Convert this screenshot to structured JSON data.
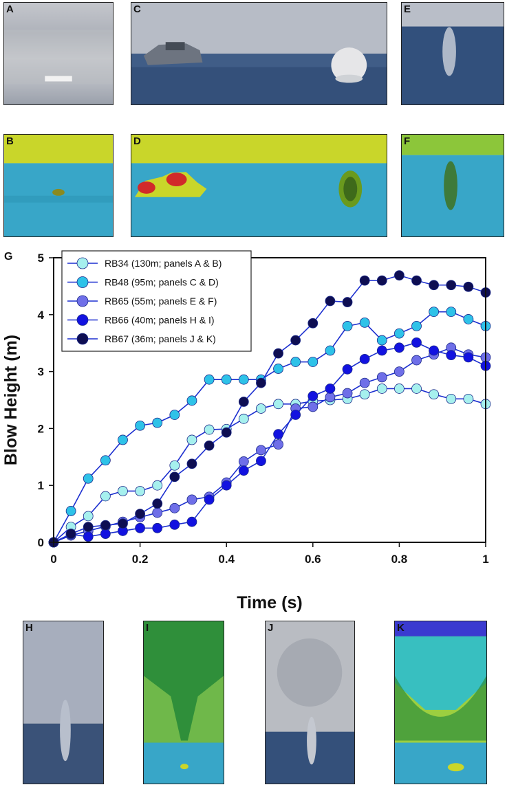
{
  "panel_labels": {
    "A": "A",
    "B": "B",
    "C": "C",
    "D": "D",
    "E": "E",
    "F": "F",
    "G": "G",
    "H": "H",
    "I": "I",
    "J": "J",
    "K": "K"
  },
  "colors": {
    "sky": "#b7bcc6",
    "sea": "#34507a",
    "thermal_sky": "#c9d62a",
    "thermal_sea": "#38a6c8",
    "thermal_hot": "#d12a2a"
  },
  "chart_data": {
    "type": "line",
    "xlabel": "Time (s)",
    "ylabel": "Blow Height (m)",
    "xlim": [
      0,
      1
    ],
    "ylim": [
      0,
      5
    ],
    "xticks": [
      0,
      0.2,
      0.4,
      0.6,
      0.8,
      1
    ],
    "xtick_labels": [
      "0",
      "0.2",
      "0.4",
      "0.6",
      "0.8",
      "1"
    ],
    "yticks": [
      0,
      1,
      2,
      3,
      4,
      5
    ],
    "ytick_labels": [
      "0",
      "1",
      "2",
      "3",
      "4",
      "5"
    ],
    "legend_position": "top-left",
    "x": [
      0,
      0.04,
      0.08,
      0.12,
      0.16,
      0.2,
      0.24,
      0.28,
      0.32,
      0.36,
      0.4,
      0.44,
      0.48,
      0.52,
      0.56,
      0.6,
      0.64,
      0.68,
      0.72,
      0.76,
      0.8,
      0.84,
      0.88,
      0.92,
      0.96,
      1.0
    ],
    "series": [
      {
        "name": "RB34 (130m; panels A & B)",
        "color": "#a6f0ee",
        "values": [
          0,
          0.27,
          0.46,
          0.81,
          0.9,
          0.9,
          1.0,
          1.35,
          1.8,
          1.98,
          1.99,
          2.17,
          2.35,
          2.43,
          2.43,
          2.48,
          2.5,
          2.52,
          2.6,
          2.7,
          2.7,
          2.7,
          2.6,
          2.52,
          2.52,
          2.43
        ]
      },
      {
        "name": "RB48 (95m; panels C & D)",
        "color": "#2ec2e8",
        "values": [
          0,
          0.55,
          1.12,
          1.44,
          1.8,
          2.05,
          2.1,
          2.24,
          2.49,
          2.86,
          2.86,
          2.86,
          2.86,
          3.05,
          3.17,
          3.17,
          3.37,
          3.8,
          3.86,
          3.55,
          3.67,
          3.8,
          4.05,
          4.05,
          3.92,
          3.8
        ]
      },
      {
        "name": "RB65 (55m; panels E & F)",
        "color": "#6f6fe8",
        "values": [
          0,
          0.12,
          0.2,
          0.28,
          0.36,
          0.44,
          0.52,
          0.6,
          0.75,
          0.8,
          1.05,
          1.42,
          1.62,
          1.72,
          2.35,
          2.38,
          2.55,
          2.62,
          2.8,
          2.9,
          3.0,
          3.2,
          3.3,
          3.42,
          3.3,
          3.25
        ]
      },
      {
        "name": "RB66 (40m; panels H & I)",
        "color": "#1212e0",
        "values": [
          0,
          0.14,
          0.1,
          0.15,
          0.2,
          0.25,
          0.25,
          0.31,
          0.36,
          0.75,
          1.0,
          1.26,
          1.43,
          1.9,
          2.24,
          2.57,
          2.7,
          3.04,
          3.22,
          3.37,
          3.42,
          3.51,
          3.37,
          3.29,
          3.25,
          3.1
        ]
      },
      {
        "name": "RB67 (36m; panels J & K)",
        "color": "#0e0e52",
        "values": [
          0,
          0.15,
          0.27,
          0.3,
          0.33,
          0.5,
          0.68,
          1.15,
          1.38,
          1.7,
          1.93,
          2.47,
          2.8,
          3.32,
          3.55,
          3.85,
          4.24,
          4.22,
          4.6,
          4.6,
          4.69,
          4.6,
          4.52,
          4.52,
          4.49,
          4.39
        ]
      }
    ]
  }
}
